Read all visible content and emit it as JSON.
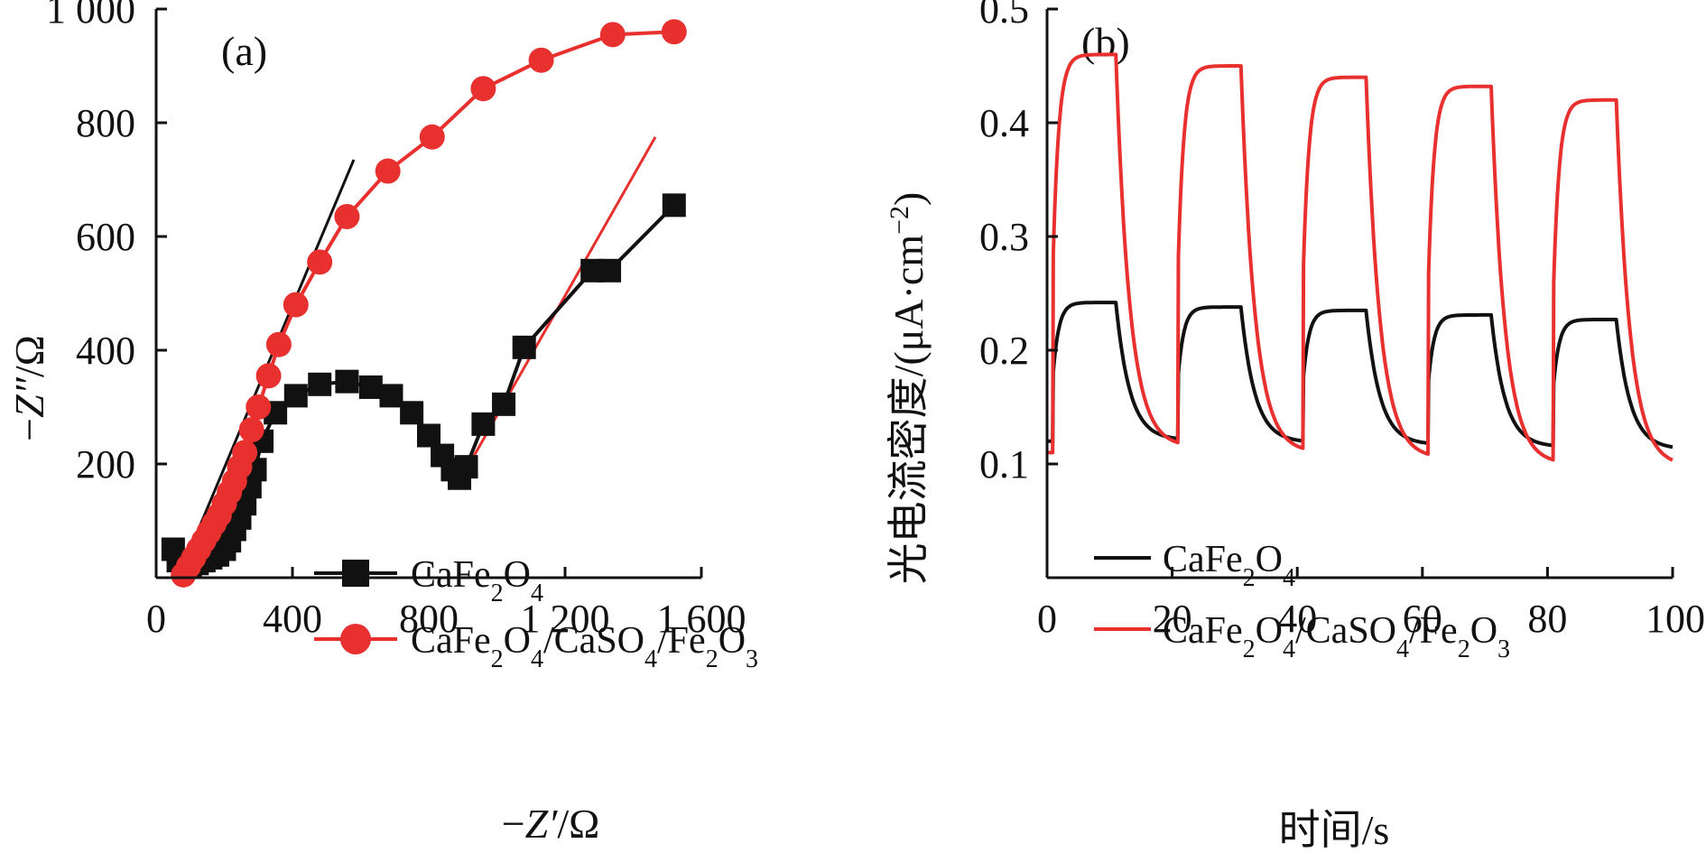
{
  "chart_data": [
    {
      "type": "scatter",
      "panel_label": "(a)",
      "xlabel_pre": "−",
      "xlabel_var": "Z′",
      "xlabel_post": "/Ω",
      "ylabel_pre": "−",
      "ylabel_var": "Z″",
      "ylabel_post": "/Ω",
      "xlim": [
        0,
        1600
      ],
      "ylim": [
        0,
        1000
      ],
      "xticks": [
        0,
        400,
        800,
        1200,
        1600
      ],
      "xtick_labels": [
        "0",
        "400",
        "800",
        "1 200",
        "1 600"
      ],
      "yticks": [
        200,
        400,
        600,
        800,
        1000
      ],
      "ytick_labels": [
        "200",
        "400",
        "600",
        "800",
        "1 000"
      ],
      "legend_position": "center",
      "series": [
        {
          "name_parts": [
            [
              "CaFe",
              ""
            ],
            [
              "2",
              "sub"
            ],
            [
              "O",
              ""
            ],
            [
              "4",
              "sub"
            ]
          ],
          "color": "#111111",
          "marker": "square",
          "x": [
            50,
            65,
            85,
            100,
            120,
            140,
            160,
            180,
            200,
            215,
            230,
            245,
            260,
            275,
            290,
            310,
            350,
            410,
            480,
            560,
            630,
            690,
            750,
            800,
            840,
            870,
            890,
            910,
            960,
            1020,
            1080,
            1280,
            1330,
            1520
          ],
          "y": [
            50,
            30,
            20,
            20,
            25,
            30,
            35,
            40,
            50,
            65,
            85,
            105,
            130,
            160,
            190,
            240,
            290,
            320,
            340,
            345,
            335,
            320,
            290,
            250,
            215,
            190,
            175,
            195,
            270,
            305,
            405,
            540,
            540,
            655
          ]
        },
        {
          "name_parts": [
            [
              "CaFe",
              ""
            ],
            [
              "2",
              "sub"
            ],
            [
              "O",
              ""
            ],
            [
              "4",
              "sub"
            ],
            [
              "/CaSO",
              ""
            ],
            [
              "4",
              "sub"
            ],
            [
              "/Fe",
              ""
            ],
            [
              "2",
              "sub"
            ],
            [
              "O",
              ""
            ],
            [
              "3",
              "sub"
            ]
          ],
          "color": "#e8302f",
          "marker": "circle",
          "x": [
            80,
            95,
            110,
            125,
            140,
            155,
            170,
            185,
            200,
            215,
            230,
            245,
            260,
            280,
            300,
            330,
            360,
            410,
            480,
            560,
            680,
            810,
            960,
            1130,
            1340,
            1520
          ],
          "y": [
            5,
            20,
            35,
            50,
            65,
            80,
            95,
            110,
            130,
            150,
            170,
            195,
            220,
            260,
            300,
            355,
            410,
            480,
            555,
            635,
            715,
            775,
            860,
            910,
            955,
            960
          ]
        }
      ],
      "fit_lines": [
        {
          "color": "#111111",
          "x": [
            75,
            580
          ],
          "y": [
            15,
            735
          ]
        },
        {
          "color": "#e8302f",
          "x": [
            905,
            1465
          ],
          "y": [
            185,
            775
          ]
        }
      ]
    },
    {
      "type": "line",
      "panel_label": "(b)",
      "xlabel": "时间/s",
      "ylabel_pre": "光电流密度/(μA·cm",
      "ylabel_sup": "−2",
      "ylabel_post": ")",
      "xlim": [
        0,
        100
      ],
      "ylim": [
        0,
        0.5
      ],
      "xticks": [
        0,
        20,
        40,
        60,
        80,
        100
      ],
      "xtick_labels": [
        "0",
        "20",
        "40",
        "60",
        "80",
        "100"
      ],
      "yticks": [
        0.1,
        0.2,
        0.3,
        0.4,
        0.5
      ],
      "ytick_labels": [
        "0.1",
        "0.2",
        "0.3",
        "0.4",
        "0.5"
      ],
      "legend_position": "bottom-left",
      "light_periods": [
        [
          1,
          11
        ],
        [
          21,
          31
        ],
        [
          41,
          51
        ],
        [
          61,
          71
        ],
        [
          81,
          91
        ]
      ],
      "series": [
        {
          "name_parts": [
            [
              "CaFe",
              ""
            ],
            [
              "2",
              "sub"
            ],
            [
              "O",
              ""
            ],
            [
              "4",
              "sub"
            ]
          ],
          "color": "#111111",
          "baseline_start": 0.12,
          "baseline_end": 0.115,
          "plateau": [
            0.242,
            0.238,
            0.235,
            0.231,
            0.227
          ],
          "dark_min": [
            0.121,
            0.119,
            0.117,
            0.115,
            0.113
          ]
        },
        {
          "name_parts": [
            [
              "CaFe",
              ""
            ],
            [
              "2",
              "sub"
            ],
            [
              "O",
              ""
            ],
            [
              "4",
              "sub"
            ],
            [
              "/CaSO",
              ""
            ],
            [
              "4",
              "sub"
            ],
            [
              "/Fe",
              ""
            ],
            [
              "2",
              "sub"
            ],
            [
              "O",
              ""
            ],
            [
              "3",
              "sub"
            ]
          ],
          "color": "#e8302f",
          "baseline_start": 0.11,
          "baseline_end": 0.098,
          "plateau": [
            0.46,
            0.45,
            0.44,
            0.432,
            0.42
          ],
          "dark_min": [
            0.115,
            0.11,
            0.105,
            0.1,
            0.098
          ]
        }
      ]
    }
  ]
}
